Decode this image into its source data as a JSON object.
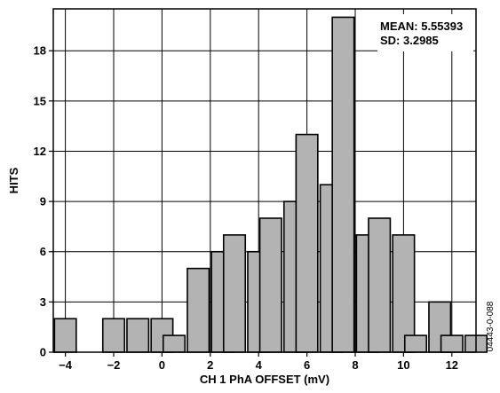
{
  "figure_code": "04443-0-088",
  "colors": {
    "bar_fill": "#b3b3b3",
    "bar_stroke": "#000000",
    "grid": "#000000"
  },
  "chart_data": {
    "type": "bar",
    "title": "",
    "xlabel": "CH 1 PhA OFFSET (mV)",
    "ylabel": "HITS",
    "bin_width": 0.9,
    "xlim": [
      -4.5,
      13
    ],
    "ylim": [
      0,
      20.5
    ],
    "x_ticks": [
      -4,
      -2,
      0,
      2,
      4,
      6,
      8,
      10,
      12
    ],
    "x_tick_labels": [
      "−4",
      "−2",
      "0",
      "2",
      "4",
      "6",
      "8",
      "10",
      "12"
    ],
    "y_ticks": [
      0,
      3,
      6,
      9,
      12,
      15,
      18
    ],
    "y_tick_labels": [
      "0",
      "3",
      "6",
      "9",
      "12",
      "15",
      "18"
    ],
    "grid": true,
    "bins": [
      {
        "x": -4.0,
        "value": 2
      },
      {
        "x": -3.0,
        "value": 0
      },
      {
        "x": -2.0,
        "value": 2
      },
      {
        "x": -1.0,
        "value": 2
      },
      {
        "x": 0.0,
        "value": 2
      },
      {
        "x": 0.5,
        "value": 1
      },
      {
        "x": 1.5,
        "value": 5
      },
      {
        "x": 2.5,
        "value": 6
      },
      {
        "x": 3.0,
        "value": 7
      },
      {
        "x": 4.0,
        "value": 6
      },
      {
        "x": 4.5,
        "value": 8
      },
      {
        "x": 5.5,
        "value": 9
      },
      {
        "x": 6.0,
        "value": 13
      },
      {
        "x": 7.0,
        "value": 10
      },
      {
        "x": 7.5,
        "value": 20
      },
      {
        "x": 8.5,
        "value": 7
      },
      {
        "x": 9.0,
        "value": 8
      },
      {
        "x": 10.0,
        "value": 7
      },
      {
        "x": 10.5,
        "value": 1
      },
      {
        "x": 11.5,
        "value": 3
      },
      {
        "x": 12.0,
        "value": 1
      },
      {
        "x": 13.0,
        "value": 1
      }
    ],
    "annotations": {
      "mean_label": "MEAN: 5.55393",
      "sd_label": "SD: 3.2985",
      "position": "top-right"
    }
  }
}
